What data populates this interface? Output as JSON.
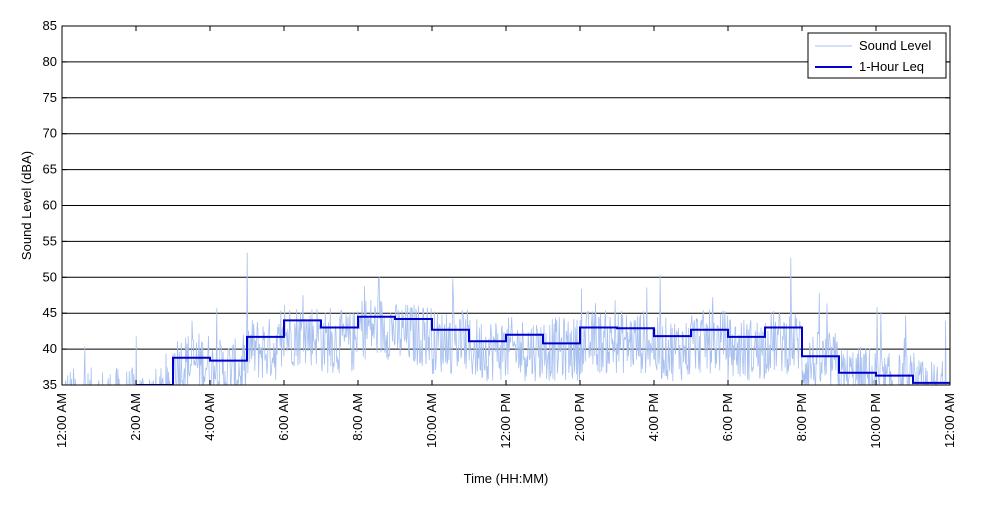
{
  "chart_data": {
    "type": "line",
    "title": "",
    "xlabel": "Time (HH:MM)",
    "ylabel": "Sound Level (dBA)",
    "ylim": [
      35,
      85
    ],
    "yticks": [
      35,
      40,
      45,
      50,
      55,
      60,
      65,
      70,
      75,
      80,
      85
    ],
    "xlim_hours": [
      0,
      24
    ],
    "xtick_hours": [
      0,
      2,
      4,
      6,
      8,
      10,
      12,
      14,
      16,
      18,
      20,
      22,
      24
    ],
    "xtick_labels": [
      "12:00 AM",
      "2:00 AM",
      "4:00 AM",
      "6:00 AM",
      "8:00 AM",
      "10:00 AM",
      "12:00 PM",
      "2:00 PM",
      "4:00 PM",
      "6:00 PM",
      "8:00 PM",
      "10:00 PM",
      "12:00 AM"
    ],
    "grid": "horizontal",
    "legend_position": "top-right",
    "series": [
      {
        "name": "Sound Level",
        "color": "#a8c0f0",
        "style": "thin-noisy",
        "hourly_mean_estimate": [
          33,
          33,
          33,
          38,
          37,
          40,
          42,
          41,
          43,
          42,
          41,
          40,
          40,
          40,
          41,
          41,
          40,
          41,
          40,
          41,
          38,
          36,
          35,
          34
        ]
      },
      {
        "name": "1-Hour Leq",
        "color": "#0000cc",
        "style": "step",
        "hours": [
          0,
          1,
          2,
          3,
          4,
          5,
          6,
          7,
          8,
          9,
          10,
          11,
          12,
          13,
          14,
          15,
          16,
          17,
          18,
          19,
          20,
          21,
          22,
          23
        ],
        "values": [
          null,
          null,
          35.0,
          38.8,
          38.4,
          41.7,
          44.0,
          43.0,
          44.5,
          44.2,
          42.7,
          41.1,
          42.0,
          40.8,
          43.0,
          42.9,
          41.8,
          42.7,
          41.7,
          43.0,
          39.0,
          36.7,
          36.3,
          35.3
        ]
      }
    ]
  }
}
